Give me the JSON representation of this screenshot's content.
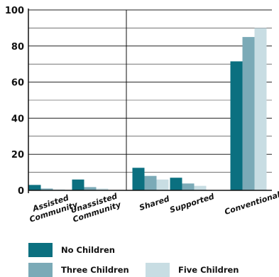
{
  "chart_data": {
    "type": "bar",
    "title": "",
    "xlabel": "",
    "ylabel": "",
    "ylim": [
      0,
      100
    ],
    "yticks": [
      "0",
      "20",
      "40",
      "60",
      "80",
      "100"
    ],
    "grid": true,
    "categories": [
      [
        "Assisted",
        "Community"
      ],
      [
        "Unassisted",
        "Community"
      ],
      [
        "Shared"
      ],
      [
        "Supported"
      ],
      [
        "Conventional"
      ]
    ],
    "series": [
      {
        "name": "No Children",
        "color": "#0b7080",
        "values": [
          3,
          6,
          12.5,
          7,
          71.5
        ]
      },
      {
        "name": "Three Children",
        "color": "#7baab7",
        "values": [
          1,
          1.8,
          8,
          3.8,
          85
        ]
      },
      {
        "name": "Five Children",
        "color": "#c8dde3",
        "values": [
          0.5,
          1,
          6,
          2.5,
          90
        ]
      }
    ],
    "legend_position": "bottom"
  }
}
